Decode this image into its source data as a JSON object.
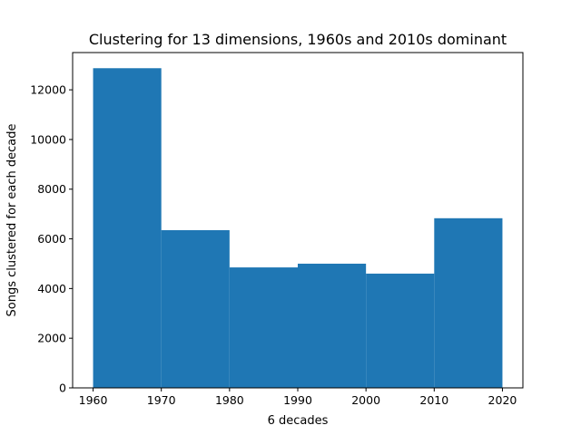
{
  "chart_data": {
    "type": "bar",
    "title": "Clustering for 13 dimensions, 1960s and 2010s dominant",
    "xlabel": "6 decades",
    "ylabel": "Songs clustered for each decade",
    "bins": [
      {
        "start": 1960,
        "end": 1970,
        "value": 12870
      },
      {
        "start": 1970,
        "end": 1980,
        "value": 6350
      },
      {
        "start": 1980,
        "end": 1990,
        "value": 4850
      },
      {
        "start": 1990,
        "end": 2000,
        "value": 5000
      },
      {
        "start": 2000,
        "end": 2010,
        "value": 4600
      },
      {
        "start": 2010,
        "end": 2020,
        "value": 6830
      }
    ],
    "xlim": [
      1957,
      2023
    ],
    "ylim": [
      0,
      13500
    ],
    "xticks": [
      1960,
      1970,
      1980,
      1990,
      2000,
      2010,
      2020
    ],
    "xtick_labels": [
      "1960",
      "1970",
      "1980",
      "1990",
      "2000",
      "2010",
      "2020"
    ],
    "yticks": [
      0,
      2000,
      4000,
      6000,
      8000,
      10000,
      12000
    ],
    "ytick_labels": [
      "0",
      "2000",
      "4000",
      "6000",
      "8000",
      "10000",
      "12000"
    ],
    "bar_color": "#1f77b4",
    "grid": false,
    "legend": "none"
  }
}
